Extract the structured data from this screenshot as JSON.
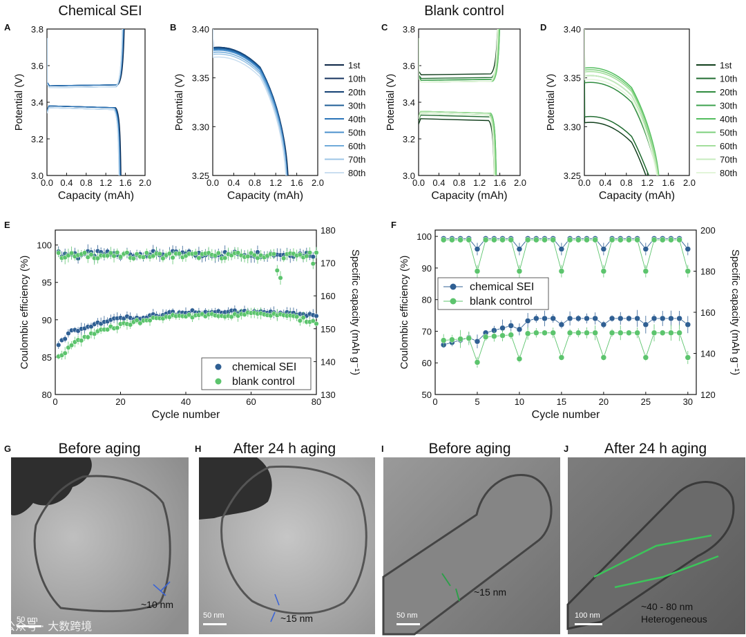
{
  "figure": {
    "group_titles": [
      "Chemical SEI",
      "Blank control"
    ],
    "panel_letters": [
      "A",
      "B",
      "C",
      "D",
      "E",
      "F",
      "G",
      "H",
      "I",
      "J"
    ],
    "watermark": "公众号 · 大数跨境"
  },
  "colors": {
    "blue_scale": [
      "#0b2545",
      "#13315c",
      "#134074",
      "#1d5c96",
      "#2a74b8",
      "#4a8fcc",
      "#6faad9",
      "#9cc5e6",
      "#c9def0"
    ],
    "green_scale": [
      "#0f3d1a",
      "#1f6b2f",
      "#2e8b3e",
      "#3ba24d",
      "#52bd5e",
      "#7bcf7b",
      "#a2de9b",
      "#c6ebbd",
      "#e2f5d9"
    ],
    "sei_marker": "#2f5f93",
    "blank_marker": "#5cc46d"
  },
  "chart_data": [
    {
      "panel": "A",
      "type": "line",
      "title": "",
      "xlabel": "Capacity (mAh)",
      "ylabel": "Potential (V)",
      "xlim": [
        0.0,
        2.0
      ],
      "ylim": [
        3.0,
        3.8
      ],
      "xticks": [
        "0.0",
        "0.4",
        "0.8",
        "1.2",
        "1.6",
        "2.0"
      ],
      "yticks": [
        "3.0",
        "3.2",
        "3.4",
        "3.6",
        "3.8"
      ],
      "series": [
        {
          "values": {
            "charge_plateau": 3.49,
            "discharge_plateau": 3.38,
            "end_capacity": 1.5
          }
        },
        {
          "values": {
            "charge_plateau": 3.49,
            "discharge_plateau": 3.38,
            "end_capacity": 1.49
          }
        },
        {
          "values": {
            "charge_plateau": 3.49,
            "discharge_plateau": 3.38,
            "end_capacity": 1.49
          }
        },
        {
          "values": {
            "charge_plateau": 3.49,
            "discharge_plateau": 3.38,
            "end_capacity": 1.48
          }
        },
        {
          "values": {
            "charge_plateau": 3.49,
            "discharge_plateau": 3.38,
            "end_capacity": 1.48
          }
        },
        {
          "values": {
            "charge_plateau": 3.48,
            "discharge_plateau": 3.37,
            "end_capacity": 1.47
          }
        },
        {
          "values": {
            "charge_plateau": 3.48,
            "discharge_plateau": 3.37,
            "end_capacity": 1.47
          }
        },
        {
          "values": {
            "charge_plateau": 3.48,
            "discharge_plateau": 3.37,
            "end_capacity": 1.46
          }
        },
        {
          "values": {
            "charge_plateau": 3.48,
            "discharge_plateau": 3.37,
            "end_capacity": 1.46
          }
        }
      ]
    },
    {
      "panel": "B",
      "type": "line",
      "title": "",
      "xlabel": "Capacity (mAh)",
      "ylabel": "Potential (V)",
      "xlim": [
        0.0,
        2.0
      ],
      "ylim": [
        3.25,
        3.4
      ],
      "xticks": [
        "0.0",
        "0.4",
        "0.8",
        "1.2",
        "1.6",
        "2.0"
      ],
      "yticks": [
        "3.25",
        "3.30",
        "3.35",
        "3.40"
      ],
      "legend": [
        "1st",
        "10th",
        "20th",
        "30th",
        "40th",
        "50th",
        "60th",
        "70th",
        "80th"
      ],
      "series": [
        {
          "name": "1st",
          "values": {
            "plateau": 3.38,
            "end_capacity": 1.44
          }
        },
        {
          "name": "10th",
          "values": {
            "plateau": 3.381,
            "end_capacity": 1.43
          }
        },
        {
          "name": "20th",
          "values": {
            "plateau": 3.381,
            "end_capacity": 1.43
          }
        },
        {
          "name": "30th",
          "values": {
            "plateau": 3.38,
            "end_capacity": 1.42
          }
        },
        {
          "name": "40th",
          "values": {
            "plateau": 3.379,
            "end_capacity": 1.42
          }
        },
        {
          "name": "50th",
          "values": {
            "plateau": 3.378,
            "end_capacity": 1.42
          }
        },
        {
          "name": "60th",
          "values": {
            "plateau": 3.376,
            "end_capacity": 1.41
          }
        },
        {
          "name": "70th",
          "values": {
            "plateau": 3.374,
            "end_capacity": 1.41
          }
        },
        {
          "name": "80th",
          "values": {
            "plateau": 3.371,
            "end_capacity": 1.4
          }
        }
      ]
    },
    {
      "panel": "C",
      "type": "line",
      "title": "",
      "xlabel": "Capacity (mAh)",
      "ylabel": "Potential (V)",
      "xlim": [
        0.0,
        2.0
      ],
      "ylim": [
        3.0,
        3.8
      ],
      "xticks": [
        "0.0",
        "0.4",
        "0.8",
        "1.2",
        "1.6",
        "2.0"
      ],
      "yticks": [
        "3.0",
        "3.2",
        "3.4",
        "3.6",
        "3.8"
      ],
      "series": [
        {
          "values": {
            "charge_plateau": 3.55,
            "discharge_plateau": 3.31,
            "end_capacity": 1.48
          }
        },
        {
          "values": {
            "charge_plateau": 3.53,
            "discharge_plateau": 3.33,
            "end_capacity": 1.5
          }
        },
        {
          "values": {
            "charge_plateau": 3.52,
            "discharge_plateau": 3.34,
            "end_capacity": 1.51
          }
        },
        {
          "values": {
            "charge_plateau": 3.52,
            "discharge_plateau": 3.35,
            "end_capacity": 1.52
          }
        },
        {
          "values": {
            "charge_plateau": 3.51,
            "discharge_plateau": 3.35,
            "end_capacity": 1.52
          }
        },
        {
          "values": {
            "charge_plateau": 3.51,
            "discharge_plateau": 3.35,
            "end_capacity": 1.51
          }
        },
        {
          "values": {
            "charge_plateau": 3.51,
            "discharge_plateau": 3.35,
            "end_capacity": 1.5
          }
        },
        {
          "values": {
            "charge_plateau": 3.51,
            "discharge_plateau": 3.34,
            "end_capacity": 1.49
          }
        },
        {
          "values": {
            "charge_plateau": 3.51,
            "discharge_plateau": 3.34,
            "end_capacity": 1.48
          }
        }
      ]
    },
    {
      "panel": "D",
      "type": "line",
      "title": "",
      "xlabel": "Capacity (mAh)",
      "ylabel": "Potential (V)",
      "xlim": [
        0.0,
        2.0
      ],
      "ylim": [
        3.25,
        3.4
      ],
      "xticks": [
        "0.0",
        "0.4",
        "0.8",
        "1.2",
        "1.6",
        "2.0"
      ],
      "yticks": [
        "3.25",
        "3.30",
        "3.35",
        "3.40"
      ],
      "legend": [
        "1st",
        "10th",
        "20th",
        "30th",
        "40th",
        "50th",
        "60th",
        "70th",
        "80th"
      ],
      "series": [
        {
          "name": "1st",
          "values": {
            "plateau": 3.304,
            "end_capacity": 1.36
          }
        },
        {
          "name": "10th",
          "values": {
            "plateau": 3.31,
            "end_capacity": 1.4
          }
        },
        {
          "name": "20th",
          "values": {
            "plateau": 3.345,
            "end_capacity": 1.42
          }
        },
        {
          "name": "30th",
          "values": {
            "plateau": 3.352,
            "end_capacity": 1.43
          }
        },
        {
          "name": "40th",
          "values": {
            "plateau": 3.36,
            "end_capacity": 1.43
          }
        },
        {
          "name": "50th",
          "values": {
            "plateau": 3.358,
            "end_capacity": 1.42
          }
        },
        {
          "name": "60th",
          "values": {
            "plateau": 3.356,
            "end_capacity": 1.42
          }
        },
        {
          "name": "70th",
          "values": {
            "plateau": 3.352,
            "end_capacity": 1.41
          }
        },
        {
          "name": "80th",
          "values": {
            "plateau": 3.348,
            "end_capacity": 1.4
          }
        }
      ]
    },
    {
      "panel": "E",
      "type": "scatter",
      "title": "",
      "xlabel": "Cycle number",
      "ylabel": "Coulombic efficiency (%)",
      "ylabel_right": "Specific capacity (mAh g⁻¹)",
      "xlim": [
        0,
        80
      ],
      "ylim": [
        80,
        102
      ],
      "ylim_right": [
        130,
        180
      ],
      "xticks": [
        "0",
        "20",
        "40",
        "60",
        "80"
      ],
      "yticks": [
        "80",
        "85",
        "90",
        "95",
        "100"
      ],
      "yticks_right": [
        "130",
        "140",
        "150",
        "160",
        "170",
        "180"
      ],
      "legend": [
        "chemical SEI",
        "blank control"
      ],
      "series": [
        {
          "name": "chemical SEI",
          "axis": "left",
          "metric": "coulombic efficiency",
          "values": {
            "x_range": [
              1,
              80
            ],
            "level": 98.8,
            "outliers": [
              [
                7,
                98.2
              ],
              [
                20,
                98.3
              ],
              [
                45,
                98.5
              ]
            ]
          }
        },
        {
          "name": "blank control",
          "axis": "left",
          "metric": "coulombic efficiency",
          "values": {
            "x_range": [
              1,
              80
            ],
            "level": 98.6,
            "outliers": [
              [
                68,
                96.6
              ],
              [
                69,
                95.6
              ],
              [
                79,
                97.5
              ]
            ]
          }
        },
        {
          "name": "chemical SEI",
          "axis": "right",
          "metric": "specific capacity",
          "values": [
            [
              1,
              145
            ],
            [
              5,
              149
            ],
            [
              10,
              151
            ],
            [
              20,
              153
            ],
            [
              30,
              154
            ],
            [
              40,
              155
            ],
            [
              50,
              155
            ],
            [
              60,
              155
            ],
            [
              70,
              154.5
            ],
            [
              80,
              154
            ]
          ]
        },
        {
          "name": "blank control",
          "axis": "right",
          "metric": "specific capacity",
          "values": [
            [
              1,
              141
            ],
            [
              5,
              145
            ],
            [
              10,
              148
            ],
            [
              20,
              151
            ],
            [
              30,
              153
            ],
            [
              40,
              154
            ],
            [
              50,
              154
            ],
            [
              60,
              154.5
            ],
            [
              70,
              154
            ],
            [
              80,
              152
            ]
          ]
        }
      ]
    },
    {
      "panel": "F",
      "type": "line",
      "title": "",
      "xlabel": "Cycle number",
      "ylabel": "Coulombic efficiency (%)",
      "ylabel_right": "Specific capacity (mAh g⁻¹)",
      "xlim": [
        0,
        31
      ],
      "ylim": [
        50,
        102
      ],
      "ylim_right": [
        120,
        200
      ],
      "xticks": [
        "0",
        "5",
        "10",
        "15",
        "20",
        "25",
        "30"
      ],
      "yticks": [
        "50",
        "60",
        "70",
        "80",
        "90",
        "100"
      ],
      "yticks_right": [
        "120",
        "140",
        "160",
        "180",
        "200"
      ],
      "legend": [
        "chemical SEI",
        "blank control"
      ],
      "aging_cycles": [
        5,
        10,
        15,
        20,
        25,
        30
      ],
      "series": [
        {
          "name": "chemical SEI",
          "axis": "left",
          "metric": "coulombic efficiency",
          "values": {
            "normal": 99.3,
            "aging": 96.0
          }
        },
        {
          "name": "blank control",
          "axis": "left",
          "metric": "coulombic efficiency",
          "values": {
            "normal": 98.9,
            "aging": 89.0
          }
        },
        {
          "name": "chemical SEI",
          "axis": "right",
          "metric": "specific capacity",
          "values": {
            "start": 143,
            "end": 157,
            "aging_drop": 3
          }
        },
        {
          "name": "blank control",
          "axis": "right",
          "metric": "specific capacity",
          "values": {
            "start": 146,
            "end": 150,
            "aging_drop": 12
          }
        }
      ]
    }
  ],
  "tem_panels": [
    {
      "letter": "G",
      "title": "Before aging",
      "thickness": "~10 nm",
      "scalebar": "50 nm"
    },
    {
      "letter": "H",
      "title": "After 24 h aging",
      "thickness": "~15 nm",
      "scalebar": "50 nm"
    },
    {
      "letter": "I",
      "title": "Before aging",
      "thickness": "~15 nm",
      "scalebar": "50 nm"
    },
    {
      "letter": "J",
      "title": "After 24 h aging",
      "thickness": "~40 - 80 nm",
      "note": "Heterogeneous",
      "scalebar": "100 nm"
    }
  ]
}
